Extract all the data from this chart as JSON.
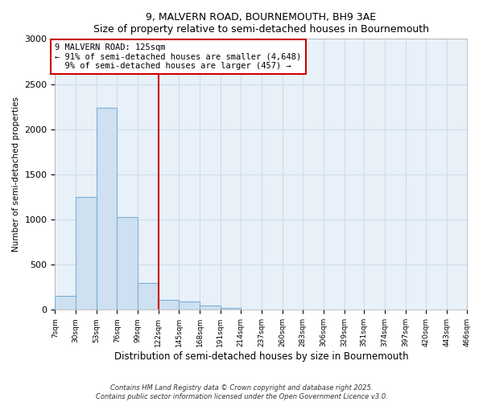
{
  "title": "9, MALVERN ROAD, BOURNEMOUTH, BH9 3AE",
  "subtitle": "Size of property relative to semi-detached houses in Bournemouth",
  "xlabel": "Distribution of semi-detached houses by size in Bournemouth",
  "ylabel": "Number of semi-detached properties",
  "property_label": "9 MALVERN ROAD: 125sqm",
  "pct_smaller": 91,
  "count_smaller": 4648,
  "pct_larger": 9,
  "count_larger": 457,
  "bin_edges": [
    7,
    30,
    53,
    76,
    99,
    122,
    145,
    168,
    191,
    214,
    237,
    260,
    283,
    306,
    329,
    351,
    374,
    397,
    420,
    443,
    466
  ],
  "bin_counts": [
    150,
    1250,
    2240,
    1030,
    295,
    110,
    90,
    50,
    25,
    0,
    0,
    0,
    0,
    0,
    0,
    0,
    0,
    0,
    0,
    0
  ],
  "bar_color": "#cfe0f0",
  "bar_edge_color": "#7ab0d8",
  "vline_color": "#cc0000",
  "vline_x": 122,
  "annotation_box_edge_color": "#cc0000",
  "grid_color": "#c8d8e8",
  "plot_bg_color": "#e8f0f8",
  "fig_bg_color": "#ffffff",
  "ylim": [
    0,
    3000
  ],
  "yticks": [
    0,
    500,
    1000,
    1500,
    2000,
    2500,
    3000
  ],
  "footer_line1": "Contains HM Land Registry data © Crown copyright and database right 2025.",
  "footer_line2": "Contains public sector information licensed under the Open Government Licence v3.0."
}
